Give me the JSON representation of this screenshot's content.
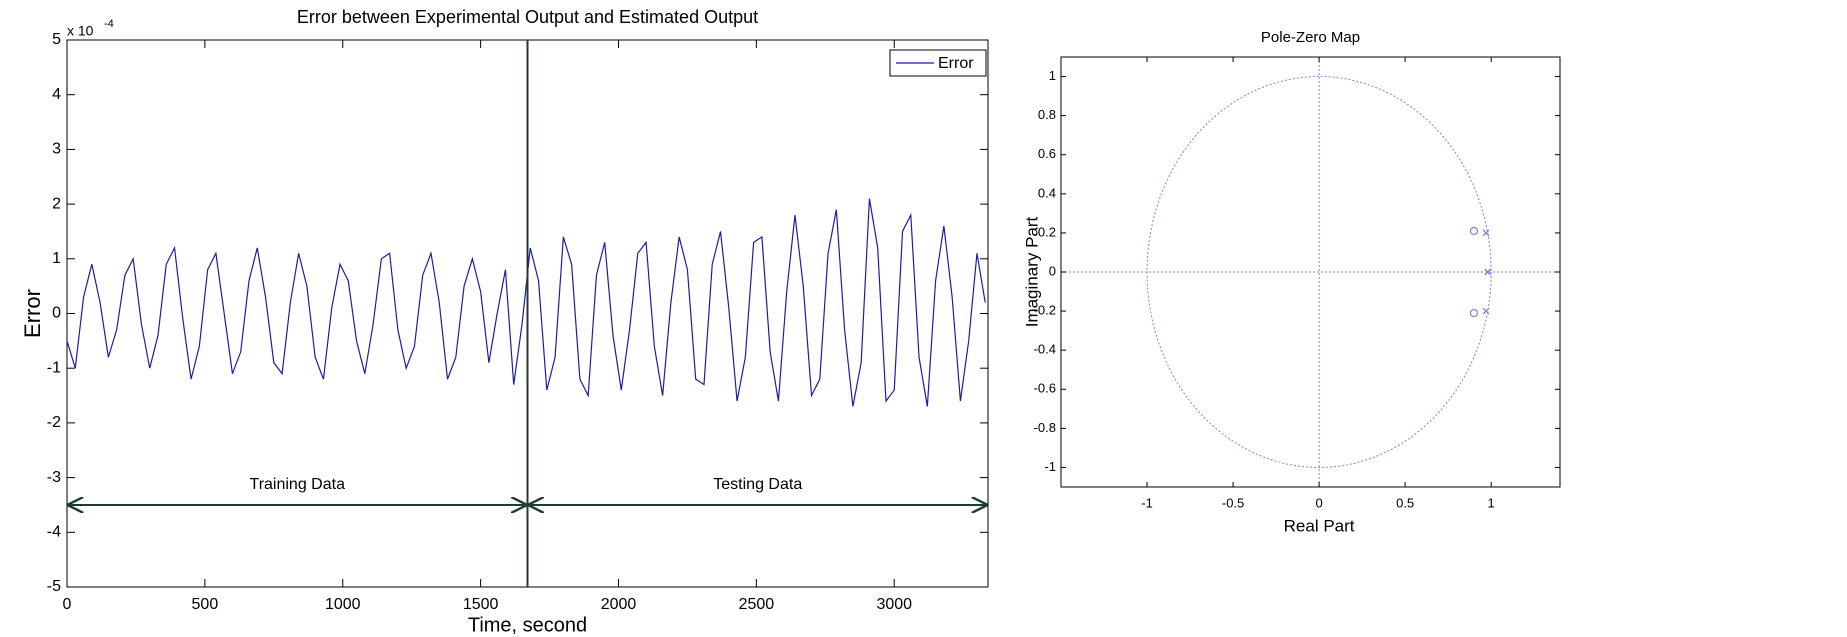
{
  "chart_data": [
    {
      "type": "line",
      "title": "Error between Experimental Output and Estimated Output",
      "x_label": "Time, second",
      "y_label": "Error",
      "y_multiplier": {
        "base": "x 10",
        "exponent": "-4"
      },
      "x": [
        0,
        30,
        60,
        90,
        120,
        150,
        180,
        210,
        240,
        270,
        300,
        330,
        360,
        390,
        420,
        450,
        480,
        510,
        540,
        570,
        600,
        630,
        660,
        690,
        720,
        750,
        780,
        810,
        840,
        870,
        900,
        930,
        960,
        990,
        1020,
        1050,
        1080,
        1110,
        1140,
        1170,
        1200,
        1230,
        1260,
        1290,
        1320,
        1350,
        1380,
        1410,
        1440,
        1470,
        1500,
        1530,
        1560,
        1590,
        1620,
        1650,
        1680,
        1710,
        1740,
        1770,
        1800,
        1830,
        1860,
        1890,
        1920,
        1950,
        1980,
        2010,
        2040,
        2070,
        2100,
        2130,
        2160,
        2190,
        2220,
        2250,
        2280,
        2310,
        2340,
        2370,
        2400,
        2430,
        2460,
        2490,
        2520,
        2550,
        2580,
        2610,
        2640,
        2670,
        2700,
        2730,
        2760,
        2790,
        2820,
        2850,
        2880,
        2910,
        2940,
        2970,
        3000,
        3030,
        3060,
        3090,
        3120,
        3150,
        3180,
        3210,
        3240,
        3270,
        3300,
        3330
      ],
      "series": [
        {
          "name": "Error",
          "color": "#1c1ca8",
          "values": [
            -0.5,
            -1.0,
            0.3,
            0.9,
            0.2,
            -0.8,
            -0.3,
            0.7,
            1.0,
            -0.2,
            -1.0,
            -0.4,
            0.9,
            1.2,
            -0.1,
            -1.2,
            -0.6,
            0.8,
            1.1,
            0.0,
            -1.1,
            -0.7,
            0.6,
            1.2,
            0.3,
            -0.9,
            -1.1,
            0.2,
            1.1,
            0.5,
            -0.8,
            -1.2,
            0.1,
            0.9,
            0.6,
            -0.5,
            -1.1,
            -0.2,
            1.0,
            1.1,
            -0.3,
            -1.0,
            -0.6,
            0.7,
            1.1,
            0.2,
            -1.2,
            -0.8,
            0.5,
            1.0,
            0.4,
            -0.9,
            0.0,
            0.8,
            -1.3,
            -0.2,
            1.2,
            0.6,
            -1.4,
            -0.8,
            1.4,
            0.9,
            -1.2,
            -1.5,
            0.7,
            1.3,
            -0.4,
            -1.4,
            -0.3,
            1.1,
            1.3,
            -0.6,
            -1.5,
            0.2,
            1.4,
            0.8,
            -1.2,
            -1.3,
            0.9,
            1.5,
            0.1,
            -1.6,
            -0.8,
            1.3,
            1.4,
            -0.7,
            -1.6,
            0.4,
            1.8,
            0.5,
            -1.5,
            -1.2,
            1.1,
            1.9,
            -0.3,
            -1.7,
            -0.9,
            2.1,
            1.2,
            -1.6,
            -1.4,
            1.5,
            1.8,
            -0.8,
            -1.7,
            0.6,
            1.6,
            0.3,
            -1.6,
            -0.5,
            1.1,
            0.2
          ]
        }
      ],
      "xlim": [
        0,
        3340
      ],
      "ylim": [
        -5,
        5
      ],
      "xticks": [
        0,
        500,
        1000,
        1500,
        2000,
        2500,
        3000
      ],
      "yticks": [
        -5,
        -4,
        -3,
        -2,
        -1,
        0,
        1,
        2,
        3,
        4,
        5
      ],
      "legend": "upper right",
      "divider": {
        "x": 1670,
        "color": "#1f3d2f"
      },
      "spans": [
        {
          "label": "Training Data",
          "x": [
            0,
            1670
          ],
          "y": -3.5
        },
        {
          "label": "Testing Data",
          "x": [
            1670,
            3340
          ],
          "y": -3.5
        }
      ]
    },
    {
      "type": "pzmap",
      "title": "Pole-Zero Map",
      "x_label": "Real Part",
      "y_label": "Imaginary Part",
      "color": "#7f7fe8",
      "series": [
        {
          "marker": "x",
          "x": [
            0.97,
            0.97,
            0.98
          ],
          "values": [
            0.2,
            -0.2,
            0
          ]
        },
        {
          "marker": "o",
          "x": [
            0.9,
            0.9
          ],
          "values": [
            0.21,
            -0.21
          ]
        }
      ],
      "xlim": [
        -1.5,
        1.4
      ],
      "ylim": [
        -1.1,
        1.1
      ],
      "xticks": [
        -1,
        -0.5,
        0,
        0.5,
        1
      ],
      "yticks": [
        -1,
        -0.8,
        -0.6,
        -0.4,
        -0.2,
        0,
        0.2,
        0.4,
        0.6,
        0.8,
        1
      ]
    }
  ]
}
